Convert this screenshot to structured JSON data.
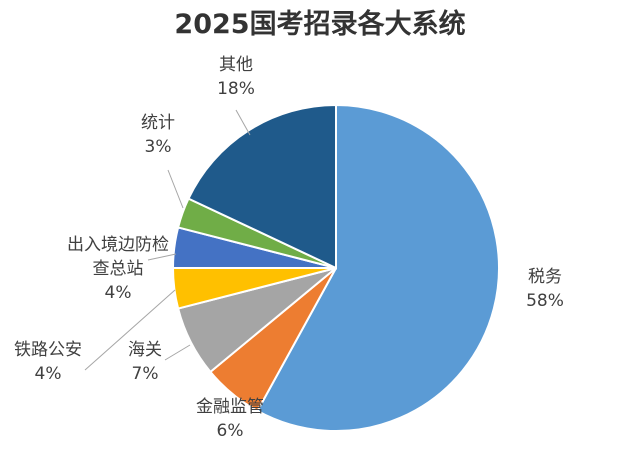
{
  "chart_data": {
    "type": "pie",
    "title": "2025国考招录各大系统",
    "start_angle_deg": 0,
    "direction": "clockwise",
    "legend": "none",
    "series": [
      {
        "name": "税务",
        "pct_label": "58%",
        "value": 58,
        "color": "#5b9bd5"
      },
      {
        "name": "金融监管",
        "pct_label": "6%",
        "value": 6,
        "color": "#ed7d31"
      },
      {
        "name": "海关",
        "pct_label": "7%",
        "value": 7,
        "color": "#a5a5a5"
      },
      {
        "name": "铁路公安",
        "pct_label": "4%",
        "value": 4,
        "color": "#ffc000"
      },
      {
        "name": "出入境边防检查总站",
        "name_lines": [
          "出入境边防检",
          "查总站"
        ],
        "pct_label": "4%",
        "value": 4,
        "color": "#4472c4"
      },
      {
        "name": "统计",
        "pct_label": "3%",
        "value": 3,
        "color": "#70ad47"
      },
      {
        "name": "其他",
        "pct_label": "18%",
        "value": 18,
        "color": "#1f5a8b"
      }
    ]
  }
}
